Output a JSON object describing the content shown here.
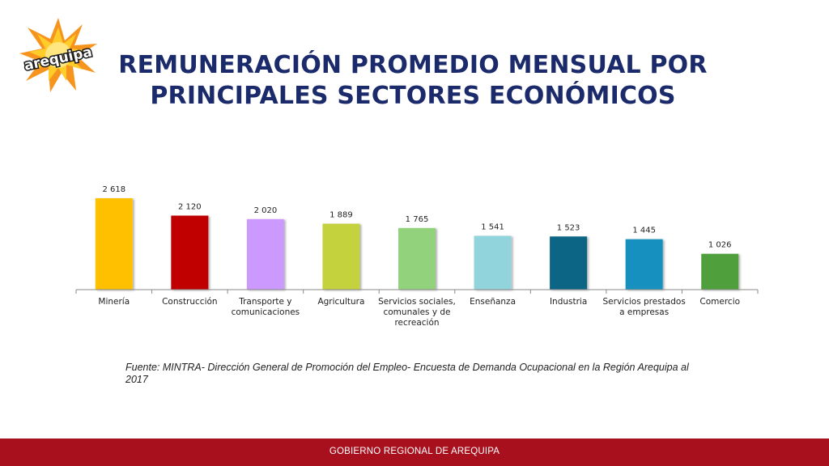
{
  "title": {
    "line1": "REMUNERACIÓN PROMEDIO MENSUAL POR",
    "line2": "PRINCIPALES SECTORES ECONÓMICOS"
  },
  "logo": {
    "text": "arequipa",
    "icon": "sun-logo-icon"
  },
  "source": "Fuente: MINTRA- Dirección General de Promoción del Empleo- Encuesta de Demanda Ocupacional en la Región Arequipa al 2017",
  "footer": {
    "text": "GOBIERNO REGIONAL DE AREQUIPA"
  },
  "colors": {
    "title": "#1b2a6b",
    "footer": "#a8101e"
  },
  "chart_data": {
    "type": "bar",
    "title": "",
    "xlabel": "",
    "ylabel": "",
    "ylim": [
      0,
      2700
    ],
    "grid": false,
    "legend": "none",
    "categories": [
      [
        "Minería"
      ],
      [
        "Construcción"
      ],
      [
        "Transporte y",
        "comunicaciones"
      ],
      [
        "Agricultura"
      ],
      [
        "Servicios sociales,",
        "comunales y de",
        "recreación"
      ],
      [
        "Enseñanza"
      ],
      [
        "Industria"
      ],
      [
        "Servicios prestados",
        "a empresas"
      ],
      [
        "Comercio"
      ]
    ],
    "values": [
      2618,
      2120,
      2020,
      1889,
      1765,
      1541,
      1523,
      1445,
      1026
    ],
    "value_labels": [
      "2 618",
      "2 120",
      "2 020",
      "1 889",
      "1 765",
      "1 541",
      "1 523",
      "1 445",
      "1 026"
    ],
    "colors": [
      "#ffc000",
      "#c00000",
      "#cc99ff",
      "#c4d23c",
      "#92d27c",
      "#92d4dc",
      "#0f6585",
      "#1591bf",
      "#50a03c"
    ]
  }
}
